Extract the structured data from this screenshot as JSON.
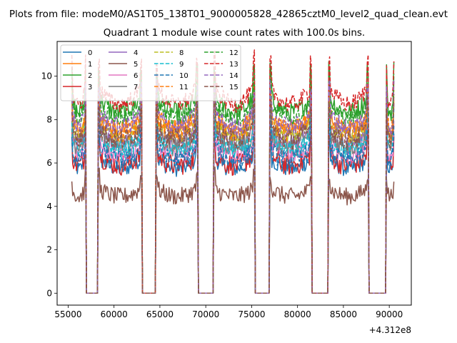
{
  "chart_data": {
    "type": "line",
    "suptitle": "Plots from file: modeM0/AS1T05_138T01_9000005828_42865cztM0_level2_quad_clean.evt",
    "title": "Quadrant 1 module wise count rates with 100.0s bins.",
    "xlabel": "",
    "ylabel": "",
    "x_offset_label": "+4.312e8",
    "xlim": [
      53800,
      92400
    ],
    "ylim": [
      -0.55,
      11.6
    ],
    "xticks": [
      55000,
      60000,
      65000,
      70000,
      75000,
      80000,
      85000,
      90000
    ],
    "xtick_labels": [
      "55000",
      "60000",
      "65000",
      "70000",
      "75000",
      "80000",
      "85000",
      "90000"
    ],
    "yticks": [
      0,
      2,
      4,
      6,
      8,
      10
    ],
    "ytick_labels": [
      "0",
      "2",
      "4",
      "6",
      "8",
      "10"
    ],
    "bin_seconds": 100,
    "segments": [
      {
        "start": 55400,
        "end": 56900
      },
      {
        "start": 58300,
        "end": 63000
      },
      {
        "start": 64600,
        "end": 69100
      },
      {
        "start": 70900,
        "end": 75300
      },
      {
        "start": 77000,
        "end": 81500
      },
      {
        "start": 83400,
        "end": 87700
      },
      {
        "start": 89700,
        "end": 90500
      }
    ],
    "series": [
      {
        "name": "0",
        "color": "#1f77b4",
        "dash": "solid",
        "level": 5.9
      },
      {
        "name": "1",
        "color": "#ff7f0e",
        "dash": "solid",
        "level": 7.8
      },
      {
        "name": "2",
        "color": "#2ca02c",
        "dash": "solid",
        "level": 8.6
      },
      {
        "name": "3",
        "color": "#d62728",
        "dash": "solid",
        "level": 6.1
      },
      {
        "name": "4",
        "color": "#9467bd",
        "dash": "solid",
        "level": 7.2
      },
      {
        "name": "5",
        "color": "#8c564b",
        "dash": "solid",
        "level": 4.6
      },
      {
        "name": "6",
        "color": "#e377c2",
        "dash": "solid",
        "level": 6.6
      },
      {
        "name": "7",
        "color": "#7f7f7f",
        "dash": "solid",
        "level": 7.0
      },
      {
        "name": "8",
        "color": "#bcbd22",
        "dash": "dashed",
        "level": 7.5
      },
      {
        "name": "9",
        "color": "#17becf",
        "dash": "dashed",
        "level": 6.8
      },
      {
        "name": "10",
        "color": "#1f77b4",
        "dash": "dashed",
        "level": 6.3
      },
      {
        "name": "11",
        "color": "#ff7f0e",
        "dash": "dashed",
        "level": 7.7
      },
      {
        "name": "12",
        "color": "#2ca02c",
        "dash": "dashed",
        "level": 8.3
      },
      {
        "name": "13",
        "color": "#d62728",
        "dash": "dashed",
        "level": 9.0
      },
      {
        "name": "14",
        "color": "#9467bd",
        "dash": "dashed",
        "level": 7.9
      },
      {
        "name": "15",
        "color": "#8c564b",
        "dash": "dashed",
        "level": 7.3
      }
    ],
    "legend_location": "upper left",
    "legend_columns": 4
  }
}
